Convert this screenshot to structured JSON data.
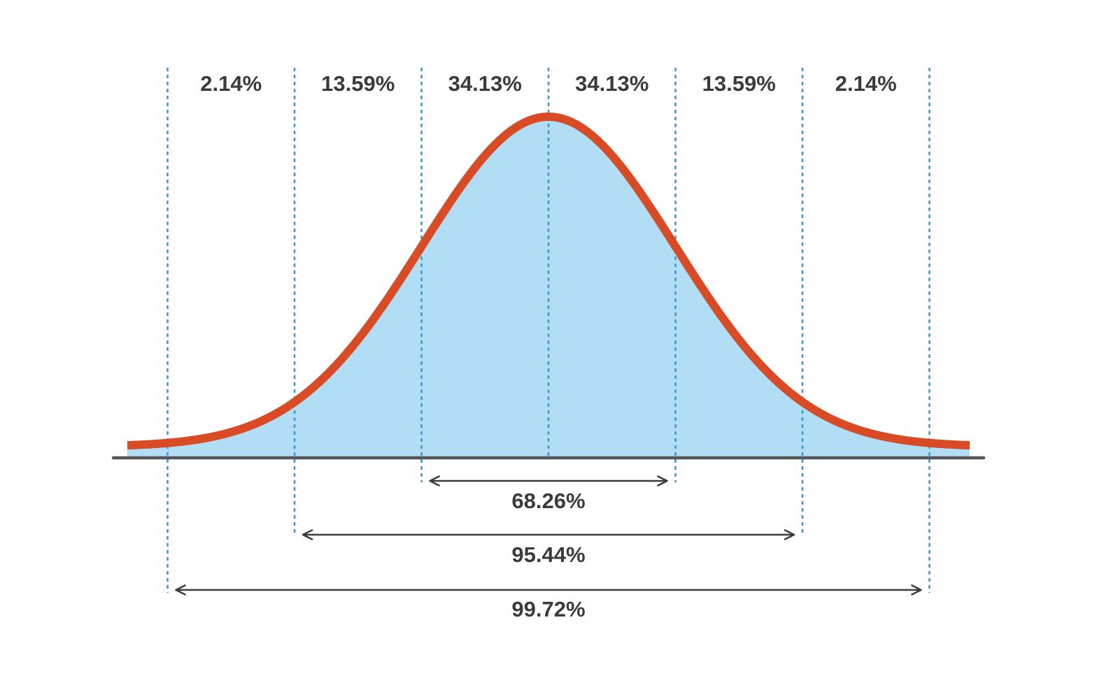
{
  "chart_data": {
    "type": "area",
    "title": "",
    "xlabel": "",
    "ylabel": "",
    "distribution": "normal",
    "mean": 0,
    "sd": 1,
    "xlim": [
      -3.5,
      3.3
    ],
    "sigma_lines": [
      -3,
      -2,
      -1,
      0,
      1,
      2,
      3
    ],
    "bands": [
      {
        "from": -3,
        "to": -2,
        "label": "2.14%"
      },
      {
        "from": -2,
        "to": -1,
        "label": "13.59%"
      },
      {
        "from": -1,
        "to": 0,
        "label": "34.13%"
      },
      {
        "from": 0,
        "to": 1,
        "label": "34.13%"
      },
      {
        "from": 1,
        "to": 2,
        "label": "13.59%"
      },
      {
        "from": 2,
        "to": 3,
        "label": "2.14%"
      }
    ],
    "ranges": [
      {
        "from": -1,
        "to": 1,
        "label": "68.26%"
      },
      {
        "from": -2,
        "to": 2,
        "label": "95.44%"
      },
      {
        "from": -3,
        "to": 3,
        "label": "99.72%"
      }
    ]
  },
  "colors": {
    "curve": "#d94b25",
    "fill": "#b1def4",
    "sigma_line": "#3d9ad1",
    "axis": "#555555",
    "arrow": "#3b3b3b",
    "text": "#3b3b3b"
  }
}
